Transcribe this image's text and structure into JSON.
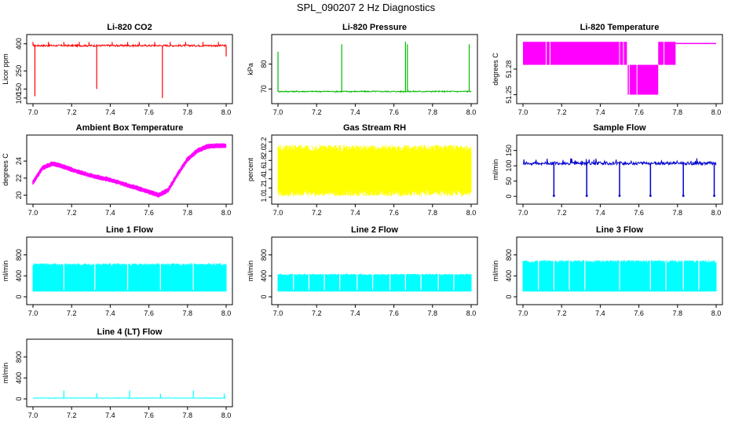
{
  "figure": {
    "title": "SPL_090207  2 Hz Diagnostics"
  },
  "chart_data": [
    {
      "id": "co2",
      "type": "line",
      "title": "Li-820 CO2",
      "xlabel": "",
      "ylabel": "Licor ppm",
      "color": "#ff0000",
      "xlim": [
        7.0,
        8.0
      ],
      "ylim": [
        95,
        425
      ],
      "xticks": [
        7.0,
        7.2,
        7.4,
        7.6,
        7.8,
        8.0
      ],
      "xtick_labels": [
        "7.0",
        "7.2",
        "7.4",
        "7.6",
        "7.8",
        "8.0"
      ],
      "yticks": [
        100,
        150,
        250,
        400
      ],
      "ytick_labels": [
        "100",
        "150",
        "250",
        "400"
      ],
      "series": [
        {
          "name": "CO2",
          "baseline": 390,
          "noise": 5,
          "spikes": [
            [
              7.0,
              410
            ],
            [
              7.01,
              110
            ],
            [
              7.08,
              410
            ],
            [
              7.16,
              410
            ],
            [
              7.24,
              410
            ],
            [
              7.29,
              410
            ],
            [
              7.33,
              150
            ],
            [
              7.41,
              410
            ],
            [
              7.49,
              410
            ],
            [
              7.55,
              410
            ],
            [
              7.63,
              410
            ],
            [
              7.67,
              100
            ],
            [
              7.71,
              410
            ],
            [
              7.79,
              410
            ],
            [
              7.88,
              410
            ],
            [
              7.96,
              410
            ],
            [
              8.0,
              330
            ]
          ]
        }
      ]
    },
    {
      "id": "pressure",
      "type": "line",
      "title": "Li-820 Pressure",
      "xlabel": "",
      "ylabel": "kPa",
      "color": "#00bb00",
      "xlim": [
        7.0,
        8.0
      ],
      "ylim": [
        66,
        90
      ],
      "xticks": [
        7.0,
        7.2,
        7.4,
        7.6,
        7.8,
        8.0
      ],
      "xtick_labels": [
        "7.0",
        "7.2",
        "7.4",
        "7.6",
        "7.8",
        "8.0"
      ],
      "yticks": [
        70,
        80
      ],
      "ytick_labels": [
        "70",
        "80"
      ],
      "series": [
        {
          "name": "Pressure",
          "baseline": 69,
          "noise": 0.25,
          "spikes": [
            [
              7.0,
              85
            ],
            [
              7.33,
              88
            ],
            [
              7.66,
              89
            ],
            [
              7.67,
              88
            ],
            [
              7.99,
              88
            ]
          ]
        }
      ]
    },
    {
      "id": "temp",
      "type": "line",
      "title": "Li-820 Temperature",
      "xlabel": "",
      "ylabel": "degrees C",
      "color": "#ff00ff",
      "xlim": [
        7.0,
        8.0
      ],
      "ylim": [
        51.245,
        51.315
      ],
      "xticks": [
        7.0,
        7.2,
        7.4,
        7.6,
        7.8,
        8.0
      ],
      "xtick_labels": [
        "7.0",
        "7.2",
        "7.4",
        "7.6",
        "7.8",
        "8.0"
      ],
      "yticks": [
        51.25,
        51.28
      ],
      "ytick_labels": [
        "51.25",
        "51.28"
      ],
      "series": [
        {
          "name": "Temperature",
          "blocks": [
            [
              7.0,
              7.5,
              51.285,
              51.312
            ],
            [
              7.5,
              7.54,
              51.285,
              51.312
            ],
            [
              7.54,
              7.7,
              51.25,
              51.285
            ],
            [
              7.7,
              7.72,
              51.285,
              51.312
            ],
            [
              7.72,
              7.79,
              51.285,
              51.312
            ]
          ],
          "line_after": [
            7.79,
            8.0,
            51.31
          ]
        }
      ]
    },
    {
      "id": "ambient",
      "type": "line",
      "title": "Ambient Box Temperature",
      "xlabel": "",
      "ylabel": "degrees C",
      "color": "#ff00ff",
      "xlim": [
        7.0,
        8.0
      ],
      "ylim": [
        19.5,
        26.5
      ],
      "xticks": [
        7.0,
        7.2,
        7.4,
        7.6,
        7.8,
        8.0
      ],
      "xtick_labels": [
        "7.0",
        "7.2",
        "7.4",
        "7.6",
        "7.8",
        "8.0"
      ],
      "yticks": [
        20,
        22,
        24
      ],
      "ytick_labels": [
        "20",
        "22",
        "24"
      ],
      "series": [
        {
          "name": "Ambient",
          "x": [
            7.0,
            7.05,
            7.1,
            7.15,
            7.2,
            7.3,
            7.4,
            7.5,
            7.6,
            7.65,
            7.7,
            7.75,
            7.8,
            7.85,
            7.9,
            7.95,
            8.0
          ],
          "y": [
            21.5,
            23.2,
            23.7,
            23.4,
            23.0,
            22.3,
            21.8,
            21.1,
            20.4,
            20.0,
            20.6,
            22.5,
            24.2,
            25.2,
            25.7,
            25.8,
            25.8
          ],
          "band": 0.6
        }
      ]
    },
    {
      "id": "rh",
      "type": "line",
      "title": "Gas Stream RH",
      "xlabel": "",
      "ylabel": "percent",
      "color": "#ffff00",
      "xlim": [
        7.0,
        8.0
      ],
      "ylim": [
        0.95,
        2.25
      ],
      "xticks": [
        7.0,
        7.2,
        7.4,
        7.6,
        7.8,
        8.0
      ],
      "xtick_labels": [
        "7.0",
        "7.2",
        "7.4",
        "7.6",
        "7.8",
        "8.0"
      ],
      "yticks": [
        1.0,
        1.2,
        1.4,
        1.6,
        1.8,
        2.0,
        2.2
      ],
      "ytick_labels": [
        "1.0",
        "1.2",
        "1.4",
        "1.6",
        "1.8",
        "2.0",
        "2.2"
      ],
      "series": [
        {
          "name": "RH",
          "low": 1.02,
          "high": 2.14
        }
      ]
    },
    {
      "id": "sample",
      "type": "line",
      "title": "Sample Flow",
      "xlabel": "",
      "ylabel": "ml/min",
      "color": "#0000cc",
      "xlim": [
        7.0,
        8.0
      ],
      "ylim": [
        -10,
        185
      ],
      "xticks": [
        7.0,
        7.2,
        7.4,
        7.6,
        7.8,
        8.0
      ],
      "xtick_labels": [
        "7.0",
        "7.2",
        "7.4",
        "7.6",
        "7.8",
        "8.0"
      ],
      "yticks": [
        0,
        50,
        100,
        150
      ],
      "ytick_labels": [
        "0",
        "50",
        "100",
        "150"
      ],
      "series": [
        {
          "name": "Sample",
          "baseline": 108,
          "noise": 5,
          "drops": [
            7.16,
            7.33,
            7.5,
            7.66,
            7.83,
            7.99
          ]
        }
      ]
    },
    {
      "id": "line1",
      "type": "line",
      "title": "Line 1 Flow",
      "xlabel": "",
      "ylabel": "ml/min",
      "color": "#00ffff",
      "xlim": [
        7.0,
        8.0
      ],
      "ylim": [
        -60,
        1050
      ],
      "xticks": [
        7.0,
        7.2,
        7.4,
        7.6,
        7.8,
        8.0
      ],
      "xtick_labels": [
        "7.0",
        "7.2",
        "7.4",
        "7.6",
        "7.8",
        "8.0"
      ],
      "yticks": [
        0,
        400,
        800
      ],
      "ytick_labels": [
        "0",
        "400",
        "800"
      ],
      "series": [
        {
          "name": "Line 1",
          "low": 100,
          "high": 640,
          "gaps": [
            7.16,
            7.32,
            7.49,
            7.66,
            7.83
          ]
        }
      ]
    },
    {
      "id": "line2",
      "type": "line",
      "title": "Line 2 Flow",
      "xlabel": "",
      "ylabel": "ml/min",
      "color": "#00ffff",
      "xlim": [
        7.0,
        8.0
      ],
      "ylim": [
        -60,
        1050
      ],
      "xticks": [
        7.0,
        7.2,
        7.4,
        7.6,
        7.8,
        8.0
      ],
      "xtick_labels": [
        "7.0",
        "7.2",
        "7.4",
        "7.6",
        "7.8",
        "8.0"
      ],
      "yticks": [
        0,
        400,
        800
      ],
      "ytick_labels": [
        "0",
        "400",
        "800"
      ],
      "series": [
        {
          "name": "Line 2",
          "low": 100,
          "high": 440,
          "gaps": [
            7.08,
            7.16,
            7.24,
            7.32,
            7.41,
            7.49,
            7.58,
            7.66,
            7.74,
            7.83,
            7.91
          ]
        }
      ]
    },
    {
      "id": "line3",
      "type": "line",
      "title": "Line 3 Flow",
      "xlabel": "",
      "ylabel": "ml/min",
      "color": "#00ffff",
      "xlim": [
        7.0,
        8.0
      ],
      "ylim": [
        -60,
        1050
      ],
      "xticks": [
        7.0,
        7.2,
        7.4,
        7.6,
        7.8,
        8.0
      ],
      "xtick_labels": [
        "7.0",
        "7.2",
        "7.4",
        "7.6",
        "7.8",
        "8.0"
      ],
      "yticks": [
        0,
        400,
        800
      ],
      "ytick_labels": [
        "0",
        "400",
        "800"
      ],
      "series": [
        {
          "name": "Line 3",
          "low": 100,
          "high": 700,
          "gaps": [
            7.08,
            7.16,
            7.24,
            7.32,
            7.5,
            7.66,
            7.74,
            7.83,
            7.91
          ]
        }
      ]
    },
    {
      "id": "line4",
      "type": "line",
      "title": "Line 4 (LT) Flow",
      "xlabel": "",
      "ylabel": "ml/min",
      "color": "#00ffff",
      "xlim": [
        7.0,
        8.0
      ],
      "ylim": [
        -60,
        1050
      ],
      "xticks": [
        7.0,
        7.2,
        7.4,
        7.6,
        7.8,
        8.0
      ],
      "xtick_labels": [
        "7.0",
        "7.2",
        "7.4",
        "7.6",
        "7.8",
        "8.0"
      ],
      "yticks": [
        0,
        400,
        800
      ],
      "ytick_labels": [
        "0",
        "400",
        "800"
      ],
      "series": [
        {
          "name": "Line 4",
          "baseline": 15,
          "noise": 4,
          "spikes": [
            [
              7.16,
              160
            ],
            [
              7.33,
              110
            ],
            [
              7.5,
              160
            ],
            [
              7.66,
              100
            ],
            [
              7.83,
              160
            ],
            [
              7.99,
              100
            ]
          ]
        }
      ]
    }
  ]
}
